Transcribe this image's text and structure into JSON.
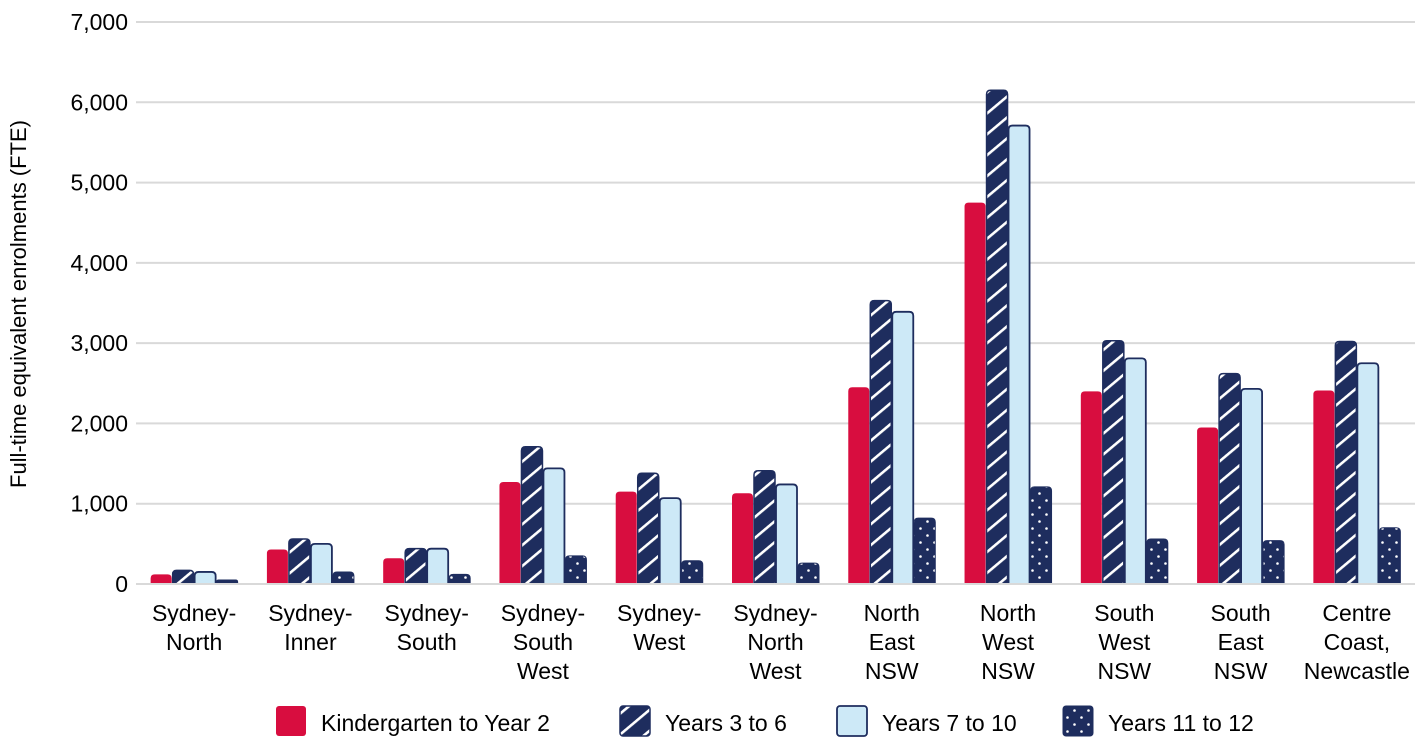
{
  "chart_data": {
    "type": "bar",
    "title": "",
    "xlabel": "",
    "ylabel": "Full-time equivalent enrolments (FTE)",
    "ylim": [
      0,
      7000
    ],
    "yticks": [
      0,
      1000,
      2000,
      3000,
      4000,
      5000,
      6000,
      7000
    ],
    "ytick_labels": [
      "0",
      "1,000",
      "2,000",
      "3,000",
      "4,000",
      "5,000",
      "6,000",
      "7,000"
    ],
    "grid": true,
    "legend_position": "bottom",
    "categories": [
      [
        "Sydney-",
        "North"
      ],
      [
        "Sydney-",
        "Inner"
      ],
      [
        "Sydney-",
        "South"
      ],
      [
        "Sydney-",
        "South",
        "West"
      ],
      [
        "Sydney-",
        "West"
      ],
      [
        "Sydney-",
        "North",
        "West"
      ],
      [
        "North",
        "East",
        "NSW"
      ],
      [
        "North",
        "West",
        "NSW"
      ],
      [
        "South",
        "West",
        "NSW"
      ],
      [
        "South",
        "East",
        "NSW"
      ],
      [
        "Centre",
        "Coast,",
        "Newcastle"
      ]
    ],
    "series": [
      {
        "name": "Kindergarten to Year 2",
        "color": "#d80d3f",
        "pattern": "solid",
        "values": [
          120,
          430,
          320,
          1270,
          1150,
          1130,
          2450,
          4750,
          2400,
          1950,
          2410
        ]
      },
      {
        "name": "Years 3 to 6",
        "color": "#1e2d5e",
        "pattern": "diagonal-hatch",
        "values": [
          170,
          560,
          440,
          1710,
          1380,
          1410,
          3530,
          6150,
          3030,
          2620,
          3020
        ]
      },
      {
        "name": "Years 7 to 10",
        "color": "#cde9f7",
        "pattern": "light-outlined",
        "values": [
          150,
          500,
          440,
          1440,
          1070,
          1240,
          3390,
          5710,
          2810,
          2430,
          2750
        ]
      },
      {
        "name": "Years 11 to 12",
        "color": "#1e2d5e",
        "pattern": "dotted",
        "values": [
          50,
          150,
          120,
          350,
          290,
          260,
          820,
          1210,
          560,
          540,
          700
        ]
      }
    ]
  }
}
